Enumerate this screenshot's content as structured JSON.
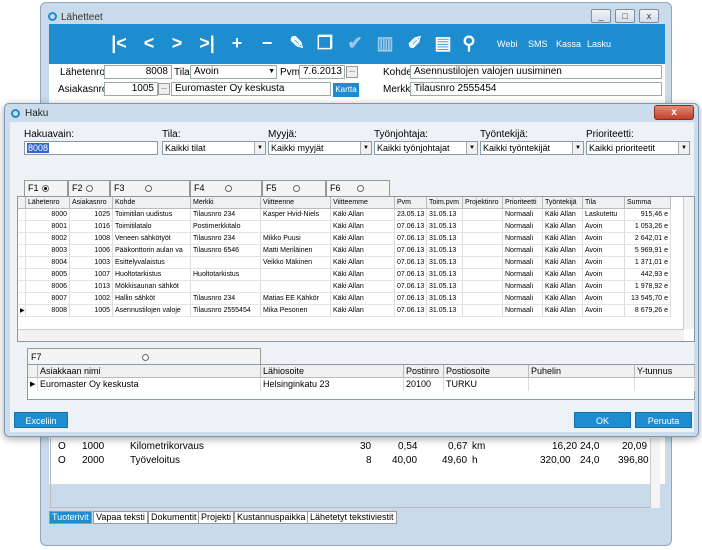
{
  "main": {
    "title": "Lähetteet",
    "window_buttons": [
      "_",
      "□",
      "x"
    ],
    "toolbar": {
      "text_buttons": [
        "Webi",
        "SMS",
        "Kassa",
        "Lasku"
      ]
    },
    "form": {
      "lahetenro_label": "Lähetenro",
      "lahetenro_value": "8008",
      "tila_label": "Tila",
      "tila_value": "Avoin",
      "pvm_label": "Pvm",
      "pvm_value": "7.6.2013",
      "kohde_label": "Kohde",
      "kohde_value": "Asennustilojen valojen uusiminen",
      "asiakasnro_label": "Asiakasnro",
      "asiakasnro_value": "1005",
      "asiakas_name": "Euromaster Oy keskusta",
      "kartta_button": "Kartta",
      "merkki_label": "Merkki",
      "merkki_value": "Tilausnro 2555454"
    },
    "rows": [
      {
        "type": "O",
        "code": "1000",
        "name": "Kilometrikorvaus",
        "qty": "30",
        "price": "0,54",
        "total": "0,67",
        "unit": "km",
        "sum": "16,20",
        "vat": "24,0",
        "gross": "20,09"
      },
      {
        "type": "O",
        "code": "2000",
        "name": "Työveloitus",
        "qty": "8",
        "price": "40,00",
        "total": "49,60",
        "unit": "h",
        "sum": "320,00",
        "vat": "24,0",
        "gross": "396,80"
      }
    ],
    "bottom_tabs": [
      "Tuoterivit",
      "Vapaa teksti",
      "Dokumentit",
      "Projekti",
      "Kustannuspaikka",
      "Lähetetyt tekstiviestit"
    ]
  },
  "dialog": {
    "title": "Haku",
    "close": "x",
    "filters": {
      "hakuavain_label": "Hakuavain:",
      "hakuavain_value": "8008",
      "tila_label": "Tila:",
      "tila_value": "Kaikki tilat",
      "myyja_label": "Myyjä:",
      "myyja_value": "Kaikki myyjät",
      "tyonjohtaja_label": "Työnjohtaja:",
      "tyonjohtaja_value": "Kaikki työnjohtajat",
      "tyontekija_label": "Työntekijä:",
      "tyontekija_value": "Kaikki työntekijät",
      "prioriteetti_label": "Prioriteetti:",
      "prioriteetti_value": "Kaikki prioriteetit"
    },
    "key_tabs": [
      "F1",
      "F2",
      "F3",
      "F4",
      "F5",
      "F6"
    ],
    "columns": [
      "Lähetenro",
      "Asiakasnro",
      "Kohde",
      "Merkki",
      "Viitteenne",
      "Viitteemme",
      "Pvm",
      "Toim.pvm",
      "Projektinro",
      "Prioriteetti",
      "Työntekijä",
      "Tila",
      "Summa"
    ],
    "rows": [
      [
        "8000",
        "1025",
        "Toimitilan uudistus",
        "Tilausnro 234",
        "Kasper Hvid-Niels",
        "Käki Allan",
        "23.05.13",
        "31.05.13",
        "",
        "Normaali",
        "Käki Allan",
        "Laskutettu",
        "915,46 e"
      ],
      [
        "8001",
        "1016",
        "Toimitilatalo",
        "Postimerkkitalo",
        "",
        "Käki Allan",
        "07.06.13",
        "31.05.13",
        "",
        "Normaali",
        "Käki Allan",
        "Avoin",
        "1 053,26 e"
      ],
      [
        "8002",
        "1008",
        "Veneen sähkötyöt",
        "Tilausnro 234",
        "Mikko Puusi",
        "Käki Allan",
        "07.06.13",
        "31.05.13",
        "",
        "Normaali",
        "Käki Allan",
        "Avoin",
        "2 642,01 e"
      ],
      [
        "8003",
        "1006",
        "Pääkonttorin aulan va",
        "Tilausnro 6546",
        "Matti Meriläinen",
        "Käki Allan",
        "07.06.13",
        "31.05.13",
        "",
        "Normaali",
        "Käki Allan",
        "Avoin",
        "5 969,91 e"
      ],
      [
        "8004",
        "1003",
        "Esittelyvalaistus",
        "",
        "Veikko Mäkinen",
        "Käki Allan",
        "07.06.13",
        "31.05.13",
        "",
        "Normaali",
        "Käki Allan",
        "Avoin",
        "1 371,01 e"
      ],
      [
        "8005",
        "1007",
        "Huoltotarkistus",
        "Huoltotarkistus",
        "",
        "Käki Allan",
        "07.06.13",
        "31.05.13",
        "",
        "Normaali",
        "Käki Allan",
        "Avoin",
        "442,93 e"
      ],
      [
        "8006",
        "1013",
        "Mökkisaunan sähköt",
        "",
        "",
        "Käki Allan",
        "07.06.13",
        "31.05.13",
        "",
        "Normaali",
        "Käki Allan",
        "Avoin",
        "1 978,92 e"
      ],
      [
        "8007",
        "1002",
        "Hallin sähköt",
        "Tilausnro 234",
        "Matias EE Kähkör",
        "Käki Allan",
        "07.06.13",
        "31.05.13",
        "",
        "Normaali",
        "Käki Allan",
        "Avoin",
        "13 545,70 e"
      ],
      [
        "8008",
        "1005",
        "Asennustilojen valoje",
        "Tilausnro 2555454",
        "Mika Pesonen",
        "Käki Allan",
        "07.06.13",
        "31.05.13",
        "",
        "Normaali",
        "Käki Allan",
        "Avoin",
        "8 679,26 e"
      ]
    ],
    "f7_tab": "F7",
    "customer_columns": [
      "Asiakkaan nimi",
      "Lähiosoite",
      "Postinro",
      "Postiosoite",
      "Puhelin",
      "Y-tunnus"
    ],
    "customer_row": [
      "Euromaster Oy keskusta",
      "Helsinginkatu 23",
      "20100",
      "TURKU",
      "",
      ""
    ],
    "excel_button": "Exceliin",
    "ok_button": "OK",
    "cancel_button": "Peruuta"
  }
}
